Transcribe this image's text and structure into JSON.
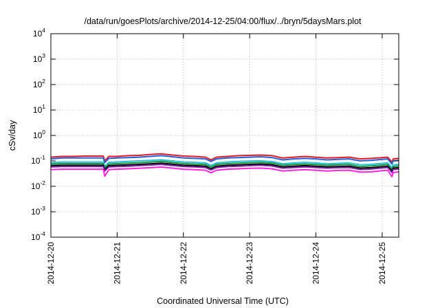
{
  "chart_data": {
    "type": "line",
    "title": "/data/run/goesPlots/archive/2014-12-25/04:00/flux/../bryn/5daysMars.plot",
    "xlabel": "Coordinated Universal Time (UTC)",
    "ylabel": "cSv/day",
    "x_range": [
      "2014-12-20 00:00",
      "2014-12-25 06:00"
    ],
    "x_ticks": [
      "2014-12-20",
      "2014-12-21",
      "2014-12-22",
      "2014-12-23",
      "2014-12-24",
      "2014-12-25"
    ],
    "y_scale": "log",
    "ylim": [
      0.0001,
      10000
    ],
    "y_ticks": [
      {
        "base": "10",
        "exp": "4"
      },
      {
        "base": "10",
        "exp": "3"
      },
      {
        "base": "10",
        "exp": "2"
      },
      {
        "base": "10",
        "exp": "1"
      },
      {
        "base": "10",
        "exp": "0"
      },
      {
        "base": "10",
        "exp": "-1"
      },
      {
        "base": "10",
        "exp": "-2"
      },
      {
        "base": "10",
        "exp": "-3"
      },
      {
        "base": "10",
        "exp": "-4"
      }
    ],
    "grid": true,
    "x": [
      "2014-12-20 00:00",
      "2014-12-20 04:00",
      "2014-12-20 08:00",
      "2014-12-20 12:00",
      "2014-12-20 16:00",
      "2014-12-20 19:00",
      "2014-12-20 19:30",
      "2014-12-20 21:00",
      "2014-12-21 00:00",
      "2014-12-21 04:00",
      "2014-12-21 08:00",
      "2014-12-21 12:00",
      "2014-12-21 16:00",
      "2014-12-21 20:00",
      "2014-12-22 00:00",
      "2014-12-22 04:00",
      "2014-12-22 08:00",
      "2014-12-22 10:00",
      "2014-12-22 12:00",
      "2014-12-22 16:00",
      "2014-12-22 20:00",
      "2014-12-23 00:00",
      "2014-12-23 04:00",
      "2014-12-23 08:00",
      "2014-12-23 12:00",
      "2014-12-23 16:00",
      "2014-12-23 20:00",
      "2014-12-24 00:00",
      "2014-12-24 04:00",
      "2014-12-24 08:00",
      "2014-12-24 12:00",
      "2014-12-24 16:00",
      "2014-12-24 20:00",
      "2014-12-25 00:00",
      "2014-12-25 02:00",
      "2014-12-25 03:30",
      "2014-12-25 04:00",
      "2014-12-25 06:00"
    ],
    "series": [
      {
        "color": "#e31a1c",
        "values": [
          0.14,
          0.15,
          0.15,
          0.155,
          0.155,
          0.155,
          0.1,
          0.15,
          0.15,
          0.16,
          0.165,
          0.18,
          0.19,
          0.17,
          0.155,
          0.15,
          0.14,
          0.11,
          0.14,
          0.15,
          0.16,
          0.165,
          0.17,
          0.16,
          0.13,
          0.14,
          0.15,
          0.14,
          0.13,
          0.135,
          0.14,
          0.12,
          0.125,
          0.135,
          0.14,
          0.09,
          0.12,
          0.125
        ]
      },
      {
        "color": "#1f5fe0",
        "values": [
          0.12,
          0.13,
          0.13,
          0.13,
          0.13,
          0.13,
          0.085,
          0.125,
          0.13,
          0.135,
          0.14,
          0.15,
          0.16,
          0.145,
          0.13,
          0.125,
          0.12,
          0.095,
          0.12,
          0.13,
          0.135,
          0.14,
          0.145,
          0.135,
          0.11,
          0.12,
          0.125,
          0.12,
          0.11,
          0.115,
          0.12,
          0.1,
          0.105,
          0.115,
          0.12,
          0.075,
          0.1,
          0.105
        ]
      },
      {
        "color": "#20c0d8",
        "values": [
          0.085,
          0.09,
          0.09,
          0.09,
          0.09,
          0.09,
          0.06,
          0.087,
          0.09,
          0.095,
          0.1,
          0.105,
          0.11,
          0.1,
          0.09,
          0.087,
          0.083,
          0.066,
          0.083,
          0.09,
          0.095,
          0.098,
          0.1,
          0.094,
          0.077,
          0.083,
          0.087,
          0.083,
          0.077,
          0.08,
          0.083,
          0.07,
          0.073,
          0.08,
          0.083,
          0.053,
          0.07,
          0.073
        ]
      },
      {
        "color": "#1a9641",
        "values": [
          0.075,
          0.078,
          0.078,
          0.078,
          0.078,
          0.078,
          0.052,
          0.075,
          0.078,
          0.082,
          0.085,
          0.09,
          0.095,
          0.086,
          0.078,
          0.075,
          0.072,
          0.057,
          0.072,
          0.078,
          0.082,
          0.085,
          0.087,
          0.082,
          0.067,
          0.072,
          0.075,
          0.072,
          0.067,
          0.07,
          0.072,
          0.06,
          0.063,
          0.069,
          0.072,
          0.046,
          0.06,
          0.063
        ]
      },
      {
        "color": "#000000",
        "values": [
          0.065,
          0.067,
          0.067,
          0.067,
          0.067,
          0.067,
          0.045,
          0.065,
          0.067,
          0.07,
          0.073,
          0.077,
          0.082,
          0.074,
          0.067,
          0.065,
          0.062,
          0.049,
          0.062,
          0.067,
          0.07,
          0.073,
          0.075,
          0.071,
          0.058,
          0.062,
          0.065,
          0.062,
          0.058,
          0.06,
          0.062,
          0.052,
          0.054,
          0.059,
          0.062,
          0.04,
          0.052,
          0.054
        ]
      },
      {
        "color": "#7b1fa2",
        "values": [
          0.058,
          0.06,
          0.06,
          0.06,
          0.06,
          0.06,
          0.04,
          0.058,
          0.06,
          0.062,
          0.065,
          0.069,
          0.073,
          0.066,
          0.06,
          0.058,
          0.055,
          0.044,
          0.055,
          0.06,
          0.062,
          0.065,
          0.067,
          0.063,
          0.052,
          0.055,
          0.058,
          0.055,
          0.052,
          0.054,
          0.055,
          0.046,
          0.048,
          0.053,
          0.055,
          0.035,
          0.046,
          0.048
        ]
      },
      {
        "color": "#ff1fdf",
        "values": [
          0.045,
          0.047,
          0.047,
          0.047,
          0.047,
          0.047,
          0.025,
          0.045,
          0.047,
          0.049,
          0.051,
          0.054,
          0.057,
          0.052,
          0.047,
          0.045,
          0.043,
          0.034,
          0.043,
          0.047,
          0.049,
          0.051,
          0.052,
          0.049,
          0.04,
          0.043,
          0.045,
          0.043,
          0.04,
          0.042,
          0.043,
          0.036,
          0.037,
          0.041,
          0.043,
          0.024,
          0.035,
          0.037
        ]
      }
    ]
  }
}
